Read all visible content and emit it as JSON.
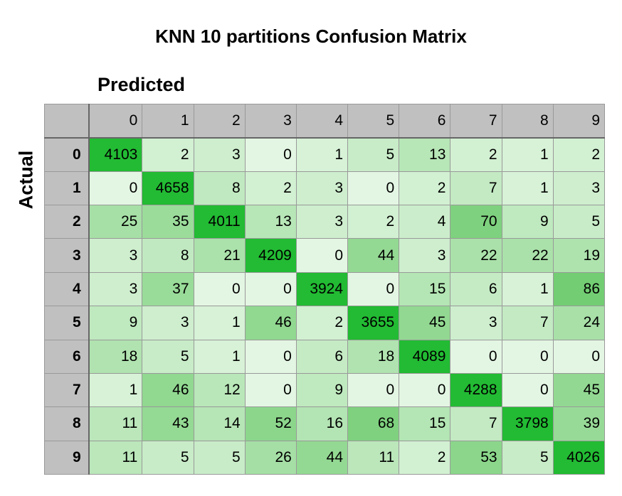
{
  "chart_data": {
    "type": "heatmap",
    "title": "KNN 10 partitions Confusion Matrix",
    "xlabel": "Predicted",
    "ylabel": "Actual",
    "x_categories": [
      "0",
      "1",
      "2",
      "3",
      "4",
      "5",
      "6",
      "7",
      "8",
      "9"
    ],
    "y_categories": [
      "0",
      "1",
      "2",
      "3",
      "4",
      "5",
      "6",
      "7",
      "8",
      "9"
    ],
    "matrix": [
      [
        4103,
        2,
        3,
        0,
        1,
        5,
        13,
        2,
        1,
        2
      ],
      [
        0,
        4658,
        8,
        2,
        3,
        0,
        2,
        7,
        1,
        3
      ],
      [
        25,
        35,
        4011,
        13,
        3,
        2,
        4,
        70,
        9,
        5
      ],
      [
        3,
        8,
        21,
        4209,
        0,
        44,
        3,
        22,
        22,
        19
      ],
      [
        3,
        37,
        0,
        0,
        3924,
        0,
        15,
        6,
        1,
        86
      ],
      [
        9,
        3,
        1,
        46,
        2,
        3655,
        45,
        3,
        7,
        24
      ],
      [
        18,
        5,
        1,
        0,
        6,
        18,
        4089,
        0,
        0,
        0
      ],
      [
        1,
        46,
        12,
        0,
        9,
        0,
        0,
        4288,
        0,
        45
      ],
      [
        11,
        43,
        14,
        52,
        16,
        68,
        15,
        7,
        3798,
        39
      ],
      [
        11,
        5,
        5,
        26,
        44,
        11,
        2,
        53,
        5,
        4026
      ]
    ],
    "colors": {
      "diagonal": "#22bb33",
      "low": "#e3f6e3",
      "high": "#70cc70",
      "header_bg": "#c0c0c0"
    }
  }
}
